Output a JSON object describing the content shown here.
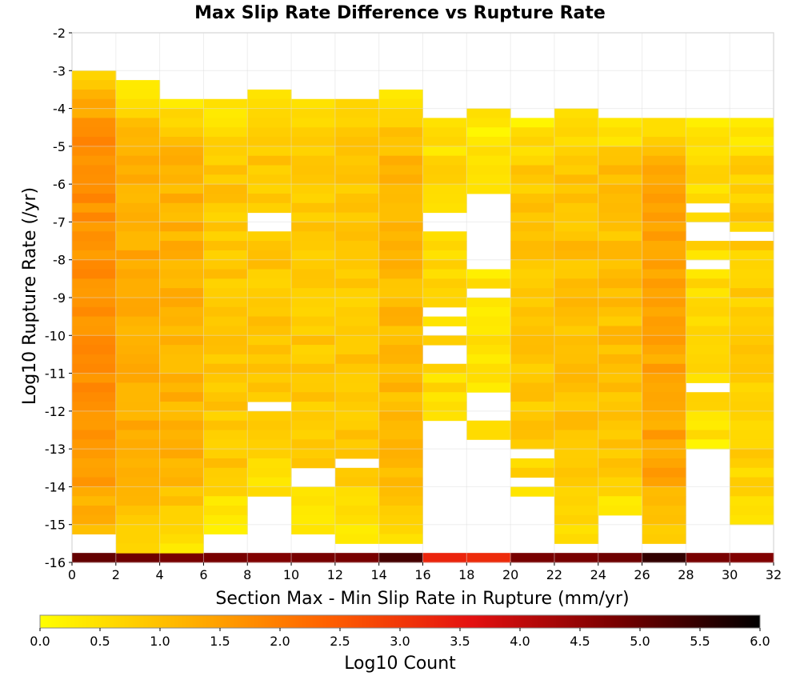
{
  "chart_data": {
    "type": "heatmap",
    "title": "Max Slip Rate Difference vs Rupture Rate",
    "xlabel": "Section Max - Min Slip Rate in Rupture (mm/yr)",
    "ylabel": "Log10 Rupture Rate (/yr)",
    "xlim": [
      0,
      32
    ],
    "ylim": [
      -16,
      -2
    ],
    "x_bin_width": 2,
    "y_bin_height": 0.25,
    "x_ticks": [
      "0",
      "2",
      "4",
      "6",
      "8",
      "10",
      "12",
      "14",
      "16",
      "18",
      "20",
      "22",
      "24",
      "26",
      "28",
      "30",
      "32"
    ],
    "y_ticks": [
      "-2",
      "-3",
      "-4",
      "-5",
      "-6",
      "-7",
      "-8",
      "-9",
      "-10",
      "-11",
      "-12",
      "-13",
      "-14",
      "-15",
      "-16"
    ],
    "grid": true,
    "colorbar": {
      "label": "Log10 Count",
      "min": 0.0,
      "max": 6.0,
      "ticks": [
        "0.0",
        "0.5",
        "1.0",
        "1.5",
        "2.0",
        "2.5",
        "3.0",
        "3.5",
        "4.0",
        "4.5",
        "5.0",
        "5.5",
        "6.0"
      ],
      "colors": [
        "#ffff00",
        "#ffb400",
        "#ff6000",
        "#e41010",
        "#780000",
        "#000000"
      ]
    },
    "columns": [
      {
        "x": 1,
        "y_max": -3.0,
        "y_min": -15.25,
        "center": 1.7,
        "start": 0.9,
        "end": 1.0,
        "bottom": 5.0
      },
      {
        "x": 3,
        "y_max": -3.25,
        "y_min": -15.75,
        "center": 1.3,
        "start": 0.3,
        "end": 0.4,
        "bottom": 4.9
      },
      {
        "x": 5,
        "y_max": -3.75,
        "y_min": -15.75,
        "center": 1.2,
        "start": 0.5,
        "end": 0.3,
        "bottom": 4.8
      },
      {
        "x": 7,
        "y_max": -3.75,
        "y_min": -15.25,
        "center": 0.9,
        "start": 0.4,
        "end": 0.2,
        "bottom": 4.8
      },
      {
        "x": 9,
        "y_max": -3.5,
        "y_min": -14.25,
        "center": 0.9,
        "start": 0.3,
        "end": 0.3,
        "bottom": 4.7
      },
      {
        "x": 11,
        "y_max": -3.75,
        "y_min": -15.25,
        "center": 0.9,
        "start": 0.3,
        "end": 0.2,
        "bottom": 4.8
      },
      {
        "x": 13,
        "y_max": -3.75,
        "y_min": -15.5,
        "center": 0.9,
        "start": 0.7,
        "end": 0.3,
        "bottom": 4.8
      },
      {
        "x": 15,
        "y_max": -3.5,
        "y_min": -15.5,
        "center": 1.1,
        "start": 0.5,
        "end": 0.4,
        "bottom": 5.3
      },
      {
        "x": 17,
        "y_max": -4.25,
        "y_min": -12.25,
        "center": 0.6,
        "start": 0.3,
        "end": 0.5,
        "bottom": 3.3
      },
      {
        "x": 19,
        "y_max": -4.0,
        "y_min": -12.75,
        "center": 0.4,
        "start": 0.3,
        "end": 0.6,
        "bottom": 3.2
      },
      {
        "x": 21,
        "y_max": -4.25,
        "y_min": -14.25,
        "center": 0.9,
        "start": 0.3,
        "end": 0.4,
        "bottom": 4.8
      },
      {
        "x": 23,
        "y_max": -4.0,
        "y_min": -15.5,
        "center": 1.0,
        "start": 0.3,
        "end": 0.3,
        "bottom": 4.8
      },
      {
        "x": 25,
        "y_max": -4.25,
        "y_min": -14.75,
        "center": 1.0,
        "start": 0.3,
        "end": 0.3,
        "bottom": 4.9
      },
      {
        "x": 27,
        "y_max": -4.25,
        "y_min": -15.5,
        "center": 1.4,
        "start": 0.3,
        "end": 0.7,
        "bottom": 5.5
      },
      {
        "x": 29,
        "y_max": -4.25,
        "y_min": -13.0,
        "center": 0.6,
        "start": 0.3,
        "end": 0.3,
        "bottom": 4.8
      },
      {
        "x": 31,
        "y_max": -4.25,
        "y_min": -15.0,
        "center": 0.8,
        "start": 0.3,
        "end": 0.3,
        "bottom": 4.7
      }
    ],
    "empty_cells": [
      {
        "x": 17,
        "y": -6.875
      },
      {
        "x": 17,
        "y": -7.125
      },
      {
        "x": 17,
        "y": -9.375
      },
      {
        "x": 17,
        "y": -9.875
      },
      {
        "x": 17,
        "y": -10.375
      },
      {
        "x": 17,
        "y": -10.625
      },
      {
        "x": 19,
        "y": -6.375
      },
      {
        "x": 19,
        "y": -6.625
      },
      {
        "x": 19,
        "y": -6.875
      },
      {
        "x": 19,
        "y": -7.125
      },
      {
        "x": 19,
        "y": -7.375
      },
      {
        "x": 19,
        "y": -7.625
      },
      {
        "x": 19,
        "y": -7.875
      },
      {
        "x": 19,
        "y": -8.125
      },
      {
        "x": 19,
        "y": -8.875
      },
      {
        "x": 19,
        "y": -11.625
      },
      {
        "x": 19,
        "y": -11.875
      },
      {
        "x": 19,
        "y": -12.125
      },
      {
        "x": 9,
        "y": -6.875
      },
      {
        "x": 9,
        "y": -7.125
      },
      {
        "x": 9,
        "y": -11.875
      },
      {
        "x": 29,
        "y": -6.625
      },
      {
        "x": 29,
        "y": -7.125
      },
      {
        "x": 29,
        "y": -7.375
      },
      {
        "x": 29,
        "y": -8.125
      },
      {
        "x": 29,
        "y": -11.375
      },
      {
        "x": 31,
        "y": -7.375
      },
      {
        "x": 7,
        "y": -3.625
      },
      {
        "x": 13,
        "y": -13.375
      },
      {
        "x": 21,
        "y": -13.125
      },
      {
        "x": 21,
        "y": -13.875
      },
      {
        "x": 11,
        "y": -13.625
      },
      {
        "x": 11,
        "y": -13.875
      }
    ]
  }
}
